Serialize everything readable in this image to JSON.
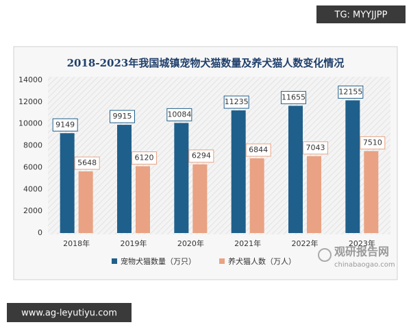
{
  "chart_data": {
    "type": "bar",
    "title": "2018-2023年我国城镇宠物犬猫数量及养犬猫人数变化情况",
    "categories": [
      "2018年",
      "2019年",
      "2020年",
      "2021年",
      "2022年",
      "2023年"
    ],
    "series": [
      {
        "name": "宠物犬猫数量（万只）",
        "color": "#1f5f8b",
        "values": [
          9149,
          9915,
          10084,
          11235,
          11655,
          12155
        ]
      },
      {
        "name": "养犬猫人数（万人）",
        "color": "#e9a283",
        "values": [
          5648,
          6120,
          6294,
          6844,
          7043,
          7510
        ]
      }
    ],
    "ylim": [
      0,
      14000
    ],
    "yticks": [
      0,
      2000,
      4000,
      6000,
      8000,
      10000,
      12000,
      14000
    ],
    "legend": "bottom"
  },
  "watermarks": {
    "top": "TG: MYYJJPP",
    "bottom": "www.ag-leyutiyu.com",
    "brand": "观研报告网",
    "site": "chinabaogao.com"
  }
}
